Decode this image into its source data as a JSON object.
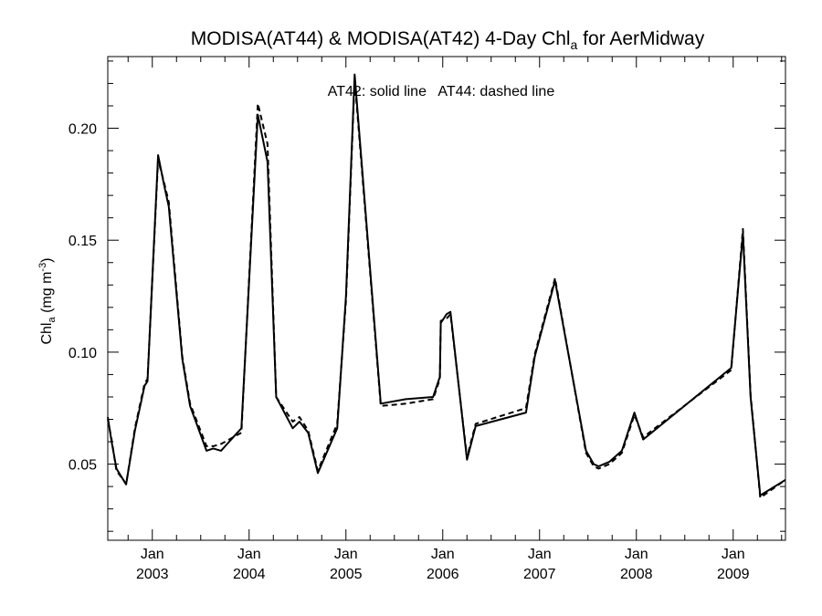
{
  "chart_data": {
    "type": "line",
    "title": {
      "main": "MODISA(AT44) & MODISA(AT42) 4-Day Chl",
      "subscript": "a",
      "suffix": " for AerMidway"
    },
    "annotation": "AT42: solid line   AT44: dashed line",
    "ylabel": {
      "main": "Chl",
      "subscript": "a",
      "unit_open": " (mg m",
      "superscript": "-3",
      "unit_close": ")"
    },
    "xlabel": "",
    "xlim": [
      2002.54,
      2009.54
    ],
    "ylim": [
      0.016,
      0.232
    ],
    "yticks": [
      {
        "value": 0.05,
        "label": "0.05"
      },
      {
        "value": 0.1,
        "label": "0.10"
      },
      {
        "value": 0.15,
        "label": "0.15"
      },
      {
        "value": 0.2,
        "label": "0.20"
      }
    ],
    "xticks": [
      {
        "value": 2003,
        "month": "Jan",
        "year": "2003"
      },
      {
        "value": 2004,
        "month": "Jan",
        "year": "2004"
      },
      {
        "value": 2005,
        "month": "Jan",
        "year": "2005"
      },
      {
        "value": 2006,
        "month": "Jan",
        "year": "2006"
      },
      {
        "value": 2007,
        "month": "Jan",
        "year": "2007"
      },
      {
        "value": 2008,
        "month": "Jan",
        "year": "2008"
      },
      {
        "value": 2009,
        "month": "Jan",
        "year": "2009"
      }
    ],
    "minor_x_per_year": 12,
    "series": [
      {
        "name": "AT42",
        "style": "solid",
        "points": [
          [
            2002.54,
            0.071
          ],
          [
            2002.58,
            0.06
          ],
          [
            2002.63,
            0.048
          ],
          [
            2002.7,
            0.043
          ],
          [
            2002.73,
            0.041
          ],
          [
            2002.82,
            0.065
          ],
          [
            2002.92,
            0.085
          ],
          [
            2002.95,
            0.087
          ],
          [
            2003.06,
            0.188
          ],
          [
            2003.12,
            0.175
          ],
          [
            2003.17,
            0.165
          ],
          [
            2003.31,
            0.097
          ],
          [
            2003.39,
            0.076
          ],
          [
            2003.56,
            0.056
          ],
          [
            2003.63,
            0.057
          ],
          [
            2003.71,
            0.056
          ],
          [
            2003.92,
            0.066
          ],
          [
            2004.09,
            0.206
          ],
          [
            2004.19,
            0.185
          ],
          [
            2004.28,
            0.08
          ],
          [
            2004.45,
            0.066
          ],
          [
            2004.52,
            0.069
          ],
          [
            2004.61,
            0.064
          ],
          [
            2004.71,
            0.046
          ],
          [
            2004.91,
            0.066
          ],
          [
            2005.0,
            0.125
          ],
          [
            2005.09,
            0.224
          ],
          [
            2005.36,
            0.077
          ],
          [
            2005.62,
            0.079
          ],
          [
            2005.9,
            0.08
          ],
          [
            2005.97,
            0.089
          ],
          [
            2005.98,
            0.113
          ],
          [
            2006.04,
            0.117
          ],
          [
            2006.08,
            0.118
          ],
          [
            2006.25,
            0.052
          ],
          [
            2006.34,
            0.067
          ],
          [
            2006.86,
            0.073
          ],
          [
            2006.95,
            0.098
          ],
          [
            2007.16,
            0.132
          ],
          [
            2007.48,
            0.056
          ],
          [
            2007.56,
            0.05
          ],
          [
            2007.61,
            0.049
          ],
          [
            2007.72,
            0.051
          ],
          [
            2007.85,
            0.056
          ],
          [
            2007.98,
            0.073
          ],
          [
            2008.07,
            0.061
          ],
          [
            2008.98,
            0.093
          ],
          [
            2009.1,
            0.153
          ],
          [
            2009.18,
            0.08
          ],
          [
            2009.28,
            0.036
          ],
          [
            2009.54,
            0.043
          ]
        ]
      },
      {
        "name": "AT44",
        "style": "dashed",
        "points": [
          [
            2002.54,
            0.07
          ],
          [
            2002.58,
            0.061
          ],
          [
            2002.63,
            0.047
          ],
          [
            2002.7,
            0.043
          ],
          [
            2002.73,
            0.041
          ],
          [
            2002.82,
            0.066
          ],
          [
            2002.92,
            0.086
          ],
          [
            2002.95,
            0.088
          ],
          [
            2003.06,
            0.186
          ],
          [
            2003.12,
            0.176
          ],
          [
            2003.17,
            0.167
          ],
          [
            2003.31,
            0.098
          ],
          [
            2003.39,
            0.077
          ],
          [
            2003.56,
            0.058
          ],
          [
            2003.63,
            0.058
          ],
          [
            2003.71,
            0.059
          ],
          [
            2003.92,
            0.064
          ],
          [
            2004.09,
            0.211
          ],
          [
            2004.19,
            0.193
          ],
          [
            2004.28,
            0.08
          ],
          [
            2004.45,
            0.069
          ],
          [
            2004.52,
            0.071
          ],
          [
            2004.61,
            0.065
          ],
          [
            2004.71,
            0.047
          ],
          [
            2004.91,
            0.068
          ],
          [
            2005.0,
            0.123
          ],
          [
            2005.09,
            0.222
          ],
          [
            2005.36,
            0.076
          ],
          [
            2005.62,
            0.077
          ],
          [
            2005.9,
            0.079
          ],
          [
            2005.97,
            0.088
          ],
          [
            2005.98,
            0.114
          ],
          [
            2006.04,
            0.115
          ],
          [
            2006.08,
            0.117
          ],
          [
            2006.25,
            0.053
          ],
          [
            2006.34,
            0.068
          ],
          [
            2006.86,
            0.075
          ],
          [
            2006.95,
            0.099
          ],
          [
            2007.16,
            0.133
          ],
          [
            2007.48,
            0.055
          ],
          [
            2007.56,
            0.049
          ],
          [
            2007.61,
            0.048
          ],
          [
            2007.72,
            0.05
          ],
          [
            2007.85,
            0.055
          ],
          [
            2007.98,
            0.072
          ],
          [
            2008.07,
            0.062
          ],
          [
            2008.98,
            0.092
          ],
          [
            2009.1,
            0.155
          ],
          [
            2009.18,
            0.081
          ],
          [
            2009.28,
            0.035
          ],
          [
            2009.54,
            0.043
          ]
        ]
      }
    ]
  }
}
